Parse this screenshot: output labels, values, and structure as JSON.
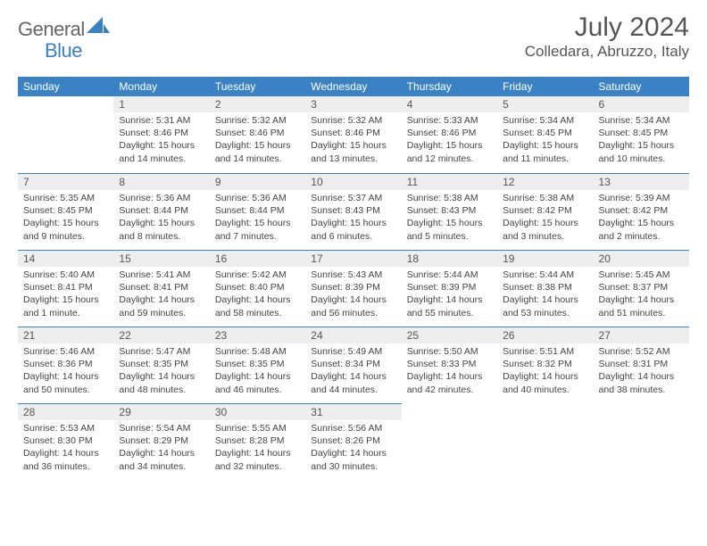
{
  "brand": {
    "general": "General",
    "blue": "Blue"
  },
  "title": {
    "month": "July 2024",
    "location": "Colledara, Abruzzo, Italy"
  },
  "colors": {
    "header_bg": "#3b82c4",
    "header_text": "#ffffff",
    "daynum_bg": "#eeeeee",
    "row_divider": "#3b82c4",
    "text": "#444444",
    "background": "#ffffff"
  },
  "weekdays": [
    "Sunday",
    "Monday",
    "Tuesday",
    "Wednesday",
    "Thursday",
    "Friday",
    "Saturday"
  ],
  "weeks": [
    [
      {
        "n": "",
        "sunrise": "",
        "sunset": "",
        "daylight": ""
      },
      {
        "n": "1",
        "sunrise": "Sunrise: 5:31 AM",
        "sunset": "Sunset: 8:46 PM",
        "daylight": "Daylight: 15 hours and 14 minutes."
      },
      {
        "n": "2",
        "sunrise": "Sunrise: 5:32 AM",
        "sunset": "Sunset: 8:46 PM",
        "daylight": "Daylight: 15 hours and 14 minutes."
      },
      {
        "n": "3",
        "sunrise": "Sunrise: 5:32 AM",
        "sunset": "Sunset: 8:46 PM",
        "daylight": "Daylight: 15 hours and 13 minutes."
      },
      {
        "n": "4",
        "sunrise": "Sunrise: 5:33 AM",
        "sunset": "Sunset: 8:46 PM",
        "daylight": "Daylight: 15 hours and 12 minutes."
      },
      {
        "n": "5",
        "sunrise": "Sunrise: 5:34 AM",
        "sunset": "Sunset: 8:45 PM",
        "daylight": "Daylight: 15 hours and 11 minutes."
      },
      {
        "n": "6",
        "sunrise": "Sunrise: 5:34 AM",
        "sunset": "Sunset: 8:45 PM",
        "daylight": "Daylight: 15 hours and 10 minutes."
      }
    ],
    [
      {
        "n": "7",
        "sunrise": "Sunrise: 5:35 AM",
        "sunset": "Sunset: 8:45 PM",
        "daylight": "Daylight: 15 hours and 9 minutes."
      },
      {
        "n": "8",
        "sunrise": "Sunrise: 5:36 AM",
        "sunset": "Sunset: 8:44 PM",
        "daylight": "Daylight: 15 hours and 8 minutes."
      },
      {
        "n": "9",
        "sunrise": "Sunrise: 5:36 AM",
        "sunset": "Sunset: 8:44 PM",
        "daylight": "Daylight: 15 hours and 7 minutes."
      },
      {
        "n": "10",
        "sunrise": "Sunrise: 5:37 AM",
        "sunset": "Sunset: 8:43 PM",
        "daylight": "Daylight: 15 hours and 6 minutes."
      },
      {
        "n": "11",
        "sunrise": "Sunrise: 5:38 AM",
        "sunset": "Sunset: 8:43 PM",
        "daylight": "Daylight: 15 hours and 5 minutes."
      },
      {
        "n": "12",
        "sunrise": "Sunrise: 5:38 AM",
        "sunset": "Sunset: 8:42 PM",
        "daylight": "Daylight: 15 hours and 3 minutes."
      },
      {
        "n": "13",
        "sunrise": "Sunrise: 5:39 AM",
        "sunset": "Sunset: 8:42 PM",
        "daylight": "Daylight: 15 hours and 2 minutes."
      }
    ],
    [
      {
        "n": "14",
        "sunrise": "Sunrise: 5:40 AM",
        "sunset": "Sunset: 8:41 PM",
        "daylight": "Daylight: 15 hours and 1 minute."
      },
      {
        "n": "15",
        "sunrise": "Sunrise: 5:41 AM",
        "sunset": "Sunset: 8:41 PM",
        "daylight": "Daylight: 14 hours and 59 minutes."
      },
      {
        "n": "16",
        "sunrise": "Sunrise: 5:42 AM",
        "sunset": "Sunset: 8:40 PM",
        "daylight": "Daylight: 14 hours and 58 minutes."
      },
      {
        "n": "17",
        "sunrise": "Sunrise: 5:43 AM",
        "sunset": "Sunset: 8:39 PM",
        "daylight": "Daylight: 14 hours and 56 minutes."
      },
      {
        "n": "18",
        "sunrise": "Sunrise: 5:44 AM",
        "sunset": "Sunset: 8:39 PM",
        "daylight": "Daylight: 14 hours and 55 minutes."
      },
      {
        "n": "19",
        "sunrise": "Sunrise: 5:44 AM",
        "sunset": "Sunset: 8:38 PM",
        "daylight": "Daylight: 14 hours and 53 minutes."
      },
      {
        "n": "20",
        "sunrise": "Sunrise: 5:45 AM",
        "sunset": "Sunset: 8:37 PM",
        "daylight": "Daylight: 14 hours and 51 minutes."
      }
    ],
    [
      {
        "n": "21",
        "sunrise": "Sunrise: 5:46 AM",
        "sunset": "Sunset: 8:36 PM",
        "daylight": "Daylight: 14 hours and 50 minutes."
      },
      {
        "n": "22",
        "sunrise": "Sunrise: 5:47 AM",
        "sunset": "Sunset: 8:35 PM",
        "daylight": "Daylight: 14 hours and 48 minutes."
      },
      {
        "n": "23",
        "sunrise": "Sunrise: 5:48 AM",
        "sunset": "Sunset: 8:35 PM",
        "daylight": "Daylight: 14 hours and 46 minutes."
      },
      {
        "n": "24",
        "sunrise": "Sunrise: 5:49 AM",
        "sunset": "Sunset: 8:34 PM",
        "daylight": "Daylight: 14 hours and 44 minutes."
      },
      {
        "n": "25",
        "sunrise": "Sunrise: 5:50 AM",
        "sunset": "Sunset: 8:33 PM",
        "daylight": "Daylight: 14 hours and 42 minutes."
      },
      {
        "n": "26",
        "sunrise": "Sunrise: 5:51 AM",
        "sunset": "Sunset: 8:32 PM",
        "daylight": "Daylight: 14 hours and 40 minutes."
      },
      {
        "n": "27",
        "sunrise": "Sunrise: 5:52 AM",
        "sunset": "Sunset: 8:31 PM",
        "daylight": "Daylight: 14 hours and 38 minutes."
      }
    ],
    [
      {
        "n": "28",
        "sunrise": "Sunrise: 5:53 AM",
        "sunset": "Sunset: 8:30 PM",
        "daylight": "Daylight: 14 hours and 36 minutes."
      },
      {
        "n": "29",
        "sunrise": "Sunrise: 5:54 AM",
        "sunset": "Sunset: 8:29 PM",
        "daylight": "Daylight: 14 hours and 34 minutes."
      },
      {
        "n": "30",
        "sunrise": "Sunrise: 5:55 AM",
        "sunset": "Sunset: 8:28 PM",
        "daylight": "Daylight: 14 hours and 32 minutes."
      },
      {
        "n": "31",
        "sunrise": "Sunrise: 5:56 AM",
        "sunset": "Sunset: 8:26 PM",
        "daylight": "Daylight: 14 hours and 30 minutes."
      },
      {
        "n": "",
        "sunrise": "",
        "sunset": "",
        "daylight": ""
      },
      {
        "n": "",
        "sunrise": "",
        "sunset": "",
        "daylight": ""
      },
      {
        "n": "",
        "sunrise": "",
        "sunset": "",
        "daylight": ""
      }
    ]
  ]
}
